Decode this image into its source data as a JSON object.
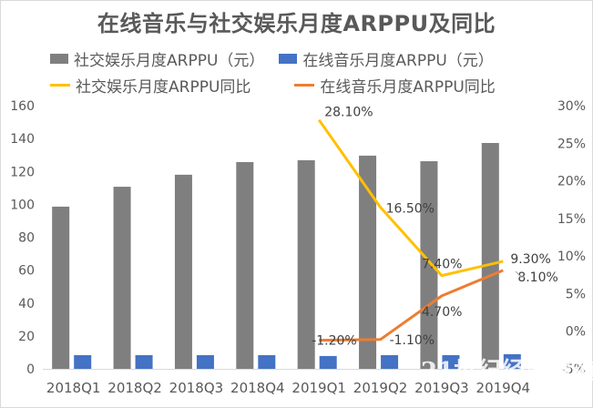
{
  "chart_data": {
    "type": "bar",
    "title": "在线音乐与社交娱乐月度ARPPU及同比",
    "categories": [
      "2018Q1",
      "2018Q2",
      "2018Q3",
      "2018Q4",
      "2019Q1",
      "2019Q2",
      "2019Q3",
      "2019Q4"
    ],
    "series": [
      {
        "name": "社交娱乐月度ARPPU（元）",
        "kind": "bar",
        "axis": "left",
        "color": "#7f7f7f",
        "values": [
          98.6,
          110.7,
          118.0,
          125.7,
          126.8,
          129.6,
          126.2,
          137.3
        ]
      },
      {
        "name": "在线音乐月度ARPPU（元）",
        "kind": "bar",
        "axis": "left",
        "color": "#4472c4",
        "values": [
          8.3,
          8.3,
          8.3,
          8.3,
          7.8,
          8.3,
          8.3,
          8.9
        ]
      },
      {
        "name": "社交娱乐月度ARPPU同比",
        "kind": "line",
        "axis": "right",
        "color": "#ffc000",
        "values": [
          null,
          null,
          null,
          null,
          28.1,
          16.5,
          7.4,
          9.3
        ],
        "labels": [
          "",
          "",
          "",
          "",
          "28.10%",
          "16.50%",
          "7.40%",
          "9.30%"
        ]
      },
      {
        "name": "在线音乐月度ARPPU同比",
        "kind": "line",
        "axis": "right",
        "color": "#ed7d31",
        "values": [
          null,
          null,
          null,
          null,
          -1.2,
          -1.1,
          4.7,
          8.1
        ],
        "labels": [
          "",
          "",
          "",
          "",
          "-1.20%",
          "-1.10%",
          "4.70%",
          "8.10%"
        ]
      }
    ],
    "left_axis": {
      "ylim": [
        0,
        160
      ],
      "ticks": [
        "0",
        "20",
        "40",
        "60",
        "80",
        "100",
        "120",
        "140",
        "160"
      ]
    },
    "right_axis": {
      "ylim": [
        -5,
        30
      ],
      "ticks": [
        "-5%",
        "0%",
        "5%",
        "10%",
        "15%",
        "20%",
        "25%",
        "30%"
      ]
    },
    "legend": "top",
    "grid": false,
    "watermark": "21世纪经济报道"
  },
  "legend": {
    "items": [
      {
        "label": "社交娱乐月度ARPPU（元）",
        "color": "#7f7f7f",
        "shape": "box"
      },
      {
        "label": "在线音乐月度ARPPU（元）",
        "color": "#4472c4",
        "shape": "box"
      },
      {
        "label": "社交娱乐月度ARPPU同比",
        "color": "#ffc000",
        "shape": "line"
      },
      {
        "label": "在线音乐月度ARPPU同比",
        "color": "#ed7d31",
        "shape": "line"
      }
    ]
  }
}
